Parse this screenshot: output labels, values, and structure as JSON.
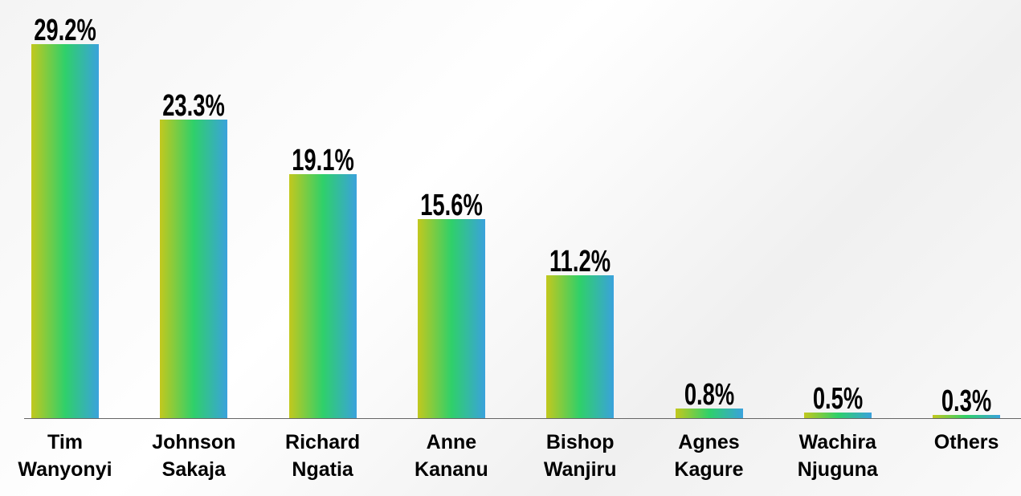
{
  "chart_data": {
    "type": "bar",
    "categories": [
      "Tim Wanyonyi",
      "Johnson Sakaja",
      "Richard Ngatia",
      "Anne Kananu",
      "Bishop Wanjiru",
      "Agnes Kagure",
      "Wachira Njuguna",
      "Others"
    ],
    "values": [
      29.2,
      23.3,
      19.1,
      15.6,
      11.2,
      0.8,
      0.5,
      0.3
    ],
    "value_labels": [
      "29.2%",
      "23.3%",
      "19.1%",
      "15.6%",
      "11.2%",
      "0.8%",
      "0.5%",
      "0.3%"
    ],
    "colors": [
      "#c2c81e",
      "#2fd06a",
      "#3aa2dc"
    ]
  }
}
